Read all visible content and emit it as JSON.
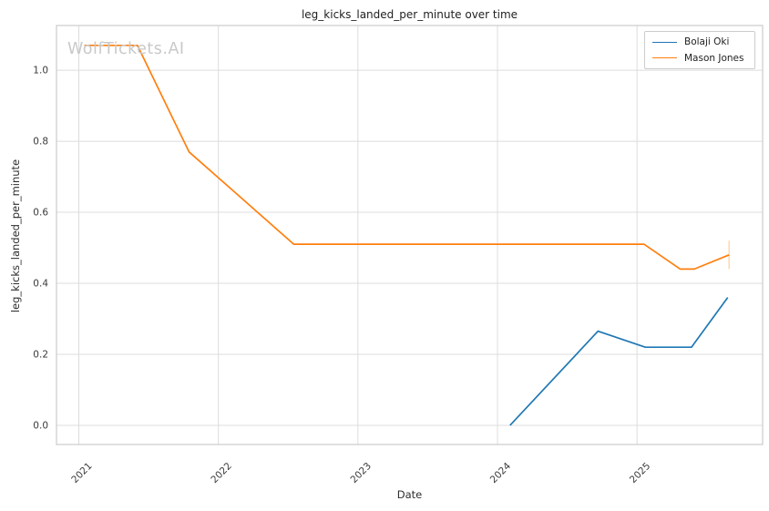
{
  "figure": {
    "title": "leg_kicks_landed_per_minute over time",
    "watermark": "WolfTickets.AI",
    "xlabel": "Date",
    "ylabel": "leg_kicks_landed_per_minute"
  },
  "legend": {
    "position": "upper-right",
    "entries": [
      {
        "label": "Bolaji Oki",
        "color": "#1f77b4"
      },
      {
        "label": "Mason Jones",
        "color": "#ff7f0e"
      }
    ]
  },
  "chart_data": {
    "type": "line",
    "title": "leg_kicks_landed_per_minute over time",
    "xlabel": "Date",
    "ylabel": "leg_kicks_landed_per_minute",
    "grid": true,
    "legend_position": "upper right",
    "xlim": [
      2020.84,
      2025.9
    ],
    "ylim": [
      -0.054,
      1.126
    ],
    "x_ticks": [
      2021,
      2022,
      2023,
      2024,
      2025
    ],
    "y_ticks": [
      0.0,
      0.2,
      0.4,
      0.6,
      0.8,
      1.0
    ],
    "series": [
      {
        "name": "Bolaji Oki",
        "color": "#1f77b4",
        "x": [
          2024.09,
          2024.72,
          2025.06,
          2025.39,
          2025.65
        ],
        "y": [
          0.0,
          0.265,
          0.22,
          0.22,
          0.36
        ]
      },
      {
        "name": "Mason Jones",
        "color": "#ff7f0e",
        "x": [
          2021.04,
          2021.42,
          2021.79,
          2022.54,
          2025.05,
          2025.31,
          2025.41,
          2025.66
        ],
        "y": [
          1.07,
          1.07,
          0.77,
          0.51,
          0.51,
          0.44,
          0.44,
          0.48
        ]
      }
    ],
    "annotations": [
      {
        "type": "vertical-whisker",
        "series": "Mason Jones",
        "x": 2025.66,
        "y_low": 0.44,
        "y_high": 0.52,
        "color": "#ffd9b3"
      }
    ]
  },
  "style": {
    "background": "#ffffff",
    "grid_color": "#dcdcdc",
    "spine_color": "#cbcbcb",
    "tick_label_color": "#3a3a3a",
    "title_color": "#1f1f1f",
    "watermark_color": "#c9c9c9"
  }
}
